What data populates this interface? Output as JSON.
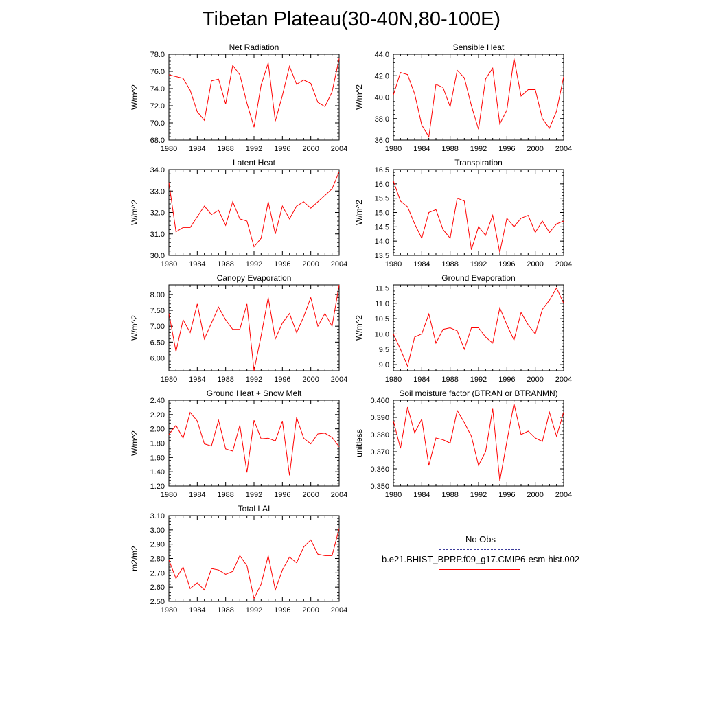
{
  "title": "Tibetan Plateau(30-40N,80-100E)",
  "colors": {
    "series": "#ff0000",
    "obs": "#3b3b9a",
    "axis": "#000000"
  },
  "chart_data": [
    {
      "type": "line",
      "title": "Net Radiation",
      "ylabel": "W/m^2",
      "xlim": [
        1980,
        2004
      ],
      "ylim": [
        68.0,
        78.0
      ],
      "yticks": [
        "68.0",
        "70.0",
        "72.0",
        "74.0",
        "76.0",
        "78.0"
      ],
      "xticks": [
        "1980",
        "1984",
        "1988",
        "1992",
        "1996",
        "2000",
        "2004"
      ],
      "series": [
        {
          "name": "b.e21.BHIST_BPRP.f09_g17.CMIP6-esm-hist.002",
          "x": [
            1980,
            1981,
            1982,
            1983,
            1984,
            1985,
            1986,
            1987,
            1988,
            1989,
            1990,
            1991,
            1992,
            1993,
            1994,
            1995,
            1996,
            1997,
            1998,
            1999,
            2000,
            2001,
            2002,
            2003,
            2004
          ],
          "values": [
            75.6,
            75.4,
            75.2,
            73.8,
            71.3,
            70.3,
            74.9,
            75.1,
            72.2,
            76.7,
            75.6,
            72.3,
            69.5,
            74.4,
            77.0,
            70.2,
            73.2,
            76.6,
            74.5,
            75.0,
            74.6,
            72.4,
            71.9,
            73.6,
            77.5
          ]
        }
      ]
    },
    {
      "type": "line",
      "title": "Sensible Heat",
      "ylabel": "W/m^2",
      "xlim": [
        1980,
        2004
      ],
      "ylim": [
        36.0,
        44.0
      ],
      "yticks": [
        "36.0",
        "38.0",
        "40.0",
        "42.0",
        "44.0"
      ],
      "xticks": [
        "1980",
        "1984",
        "1988",
        "1992",
        "1996",
        "2000",
        "2004"
      ],
      "series": [
        {
          "name": "b.e21.BHIST_BPRP.f09_g17.CMIP6-esm-hist.002",
          "x": [
            1980,
            1981,
            1982,
            1983,
            1984,
            1985,
            1986,
            1987,
            1988,
            1989,
            1990,
            1991,
            1992,
            1993,
            1994,
            1995,
            1996,
            1997,
            1998,
            1999,
            2000,
            2001,
            2002,
            2003,
            2004
          ],
          "values": [
            40.2,
            42.3,
            42.1,
            40.3,
            37.4,
            36.3,
            41.2,
            40.9,
            39.1,
            42.5,
            41.8,
            39.2,
            37.0,
            41.7,
            42.7,
            37.5,
            38.8,
            43.6,
            40.1,
            40.7,
            40.7,
            38.0,
            37.1,
            38.7,
            41.9
          ]
        }
      ]
    },
    {
      "type": "line",
      "title": "Latent Heat",
      "ylabel": "W/m^2",
      "xlim": [
        1980,
        2004
      ],
      "ylim": [
        30.0,
        34.0
      ],
      "yticks": [
        "30.0",
        "31.0",
        "32.0",
        "33.0",
        "34.0"
      ],
      "xticks": [
        "1980",
        "1984",
        "1988",
        "1992",
        "1996",
        "2000",
        "2004"
      ],
      "series": [
        {
          "name": "b.e21.BHIST_BPRP.f09_g17.CMIP6-esm-hist.002",
          "x": [
            1980,
            1981,
            1982,
            1983,
            1984,
            1985,
            1986,
            1987,
            1988,
            1989,
            1990,
            1991,
            1992,
            1993,
            1994,
            1995,
            1996,
            1997,
            1998,
            1999,
            2000,
            2001,
            2002,
            2003,
            2004
          ],
          "values": [
            33.4,
            31.1,
            31.3,
            31.3,
            31.8,
            32.3,
            31.9,
            32.1,
            31.4,
            32.5,
            31.7,
            31.6,
            30.4,
            30.8,
            32.5,
            31.0,
            32.3,
            31.7,
            32.3,
            32.5,
            32.2,
            32.5,
            32.8,
            33.1,
            33.9
          ]
        }
      ]
    },
    {
      "type": "line",
      "title": "Transpiration",
      "ylabel": "W/m^2",
      "xlim": [
        1980,
        2004
      ],
      "ylim": [
        13.5,
        16.5
      ],
      "yticks": [
        "13.5",
        "14.0",
        "14.5",
        "15.0",
        "15.5",
        "16.0",
        "16.5"
      ],
      "xticks": [
        "1980",
        "1984",
        "1988",
        "1992",
        "1996",
        "2000",
        "2004"
      ],
      "series": [
        {
          "name": "b.e21.BHIST_BPRP.f09_g17.CMIP6-esm-hist.002",
          "x": [
            1980,
            1981,
            1982,
            1983,
            1984,
            1985,
            1986,
            1987,
            1988,
            1989,
            1990,
            1991,
            1992,
            1993,
            1994,
            1995,
            1996,
            1997,
            1998,
            1999,
            2000,
            2001,
            2002,
            2003,
            2004
          ],
          "values": [
            16.1,
            15.4,
            15.2,
            14.6,
            14.1,
            15.0,
            15.1,
            14.4,
            14.1,
            15.5,
            15.4,
            13.7,
            14.5,
            14.2,
            14.9,
            13.6,
            14.8,
            14.5,
            14.8,
            14.9,
            14.3,
            14.7,
            14.3,
            14.6,
            14.7
          ]
        }
      ]
    },
    {
      "type": "line",
      "title": "Canopy Evaporation",
      "ylabel": "W/m^2",
      "xlim": [
        1980,
        2004
      ],
      "ylim": [
        5.6,
        8.3
      ],
      "yticks": [
        "6.00",
        "6.50",
        "7.00",
        "7.50",
        "8.00"
      ],
      "xticks": [
        "1980",
        "1984",
        "1988",
        "1992",
        "1996",
        "2000",
        "2004"
      ],
      "series": [
        {
          "name": "b.e21.BHIST_BPRP.f09_g17.CMIP6-esm-hist.002",
          "x": [
            1980,
            1981,
            1982,
            1983,
            1984,
            1985,
            1986,
            1987,
            1988,
            1989,
            1990,
            1991,
            1992,
            1993,
            1994,
            1995,
            1996,
            1997,
            1998,
            1999,
            2000,
            2001,
            2002,
            2003,
            2004
          ],
          "values": [
            7.4,
            6.2,
            7.2,
            6.8,
            7.7,
            6.6,
            7.1,
            7.6,
            7.2,
            6.9,
            6.9,
            7.7,
            5.6,
            6.7,
            7.9,
            6.6,
            7.1,
            7.4,
            6.8,
            7.3,
            7.9,
            7.0,
            7.4,
            7.0,
            8.3
          ]
        }
      ]
    },
    {
      "type": "line",
      "title": "Ground Evaporation",
      "ylabel": "W/m^2",
      "xlim": [
        1980,
        2004
      ],
      "ylim": [
        8.8,
        11.6
      ],
      "yticks": [
        "9.0",
        "9.5",
        "10.0",
        "10.5",
        "11.0",
        "11.5"
      ],
      "xticks": [
        "1980",
        "1984",
        "1988",
        "1992",
        "1996",
        "2000",
        "2004"
      ],
      "series": [
        {
          "name": "b.e21.BHIST_BPRP.f09_g17.CMIP6-esm-hist.002",
          "x": [
            1980,
            1981,
            1982,
            1983,
            1984,
            1985,
            1986,
            1987,
            1988,
            1989,
            1990,
            1991,
            1992,
            1993,
            1994,
            1995,
            1996,
            1997,
            1998,
            1999,
            2000,
            2001,
            2002,
            2003,
            2004
          ],
          "values": [
            10.0,
            9.5,
            8.95,
            9.9,
            10.0,
            10.65,
            9.7,
            10.15,
            10.2,
            10.1,
            9.5,
            10.2,
            10.2,
            9.9,
            9.7,
            10.85,
            10.3,
            9.8,
            10.7,
            10.3,
            10.0,
            10.8,
            11.1,
            11.5,
            11.0
          ]
        }
      ]
    },
    {
      "type": "line",
      "title": "Ground Heat + Snow Melt",
      "ylabel": "W/m^2",
      "xlim": [
        1980,
        2004
      ],
      "ylim": [
        1.2,
        2.4
      ],
      "yticks": [
        "1.20",
        "1.40",
        "1.60",
        "1.80",
        "2.00",
        "2.20",
        "2.40"
      ],
      "xticks": [
        "1980",
        "1984",
        "1988",
        "1992",
        "1996",
        "2000",
        "2004"
      ],
      "series": [
        {
          "name": "b.e21.BHIST_BPRP.f09_g17.CMIP6-esm-hist.002",
          "x": [
            1980,
            1981,
            1982,
            1983,
            1984,
            1985,
            1986,
            1987,
            1988,
            1989,
            1990,
            1991,
            1992,
            1993,
            1994,
            1995,
            1996,
            1997,
            1998,
            1999,
            2000,
            2001,
            2002,
            2003,
            2004
          ],
          "values": [
            1.92,
            2.05,
            1.87,
            2.23,
            2.11,
            1.79,
            1.76,
            2.12,
            1.72,
            1.69,
            2.05,
            1.39,
            2.12,
            1.86,
            1.87,
            1.83,
            2.11,
            1.35,
            2.16,
            1.87,
            1.79,
            1.93,
            1.94,
            1.88,
            1.75
          ]
        }
      ]
    },
    {
      "type": "line",
      "title": "Soil moisture factor (BTRAN or BTRANMN)",
      "ylabel": "unitless",
      "xlim": [
        1980,
        2004
      ],
      "ylim": [
        0.35,
        0.4
      ],
      "yticks": [
        "0.350",
        "0.360",
        "0.370",
        "0.380",
        "0.390",
        "0.400"
      ],
      "xticks": [
        "1980",
        "1984",
        "1988",
        "1992",
        "1996",
        "2000",
        "2004"
      ],
      "series": [
        {
          "name": "b.e21.BHIST_BPRP.f09_g17.CMIP6-esm-hist.002",
          "x": [
            1980,
            1981,
            1982,
            1983,
            1984,
            1985,
            1986,
            1987,
            1988,
            1989,
            1990,
            1991,
            1992,
            1993,
            1994,
            1995,
            1996,
            1997,
            1998,
            1999,
            2000,
            2001,
            2002,
            2003,
            2004
          ],
          "values": [
            0.388,
            0.372,
            0.396,
            0.381,
            0.389,
            0.362,
            0.378,
            0.377,
            0.375,
            0.394,
            0.387,
            0.379,
            0.362,
            0.37,
            0.395,
            0.353,
            0.376,
            0.398,
            0.38,
            0.382,
            0.378,
            0.376,
            0.393,
            0.379,
            0.393
          ]
        }
      ]
    },
    {
      "type": "line",
      "title": "Total LAI",
      "ylabel": "m2/m2",
      "xlim": [
        1980,
        2004
      ],
      "ylim": [
        2.5,
        3.1
      ],
      "yticks": [
        "2.50",
        "2.60",
        "2.70",
        "2.80",
        "2.90",
        "3.00",
        "3.10"
      ],
      "xticks": [
        "1980",
        "1984",
        "1988",
        "1992",
        "1996",
        "2000",
        "2004"
      ],
      "series": [
        {
          "name": "b.e21.BHIST_BPRP.f09_g17.CMIP6-esm-hist.002",
          "x": [
            1980,
            1981,
            1982,
            1983,
            1984,
            1985,
            1986,
            1987,
            1988,
            1989,
            1990,
            1991,
            1992,
            1993,
            1994,
            1995,
            1996,
            1997,
            1998,
            1999,
            2000,
            2001,
            2002,
            2003,
            2004
          ],
          "values": [
            2.79,
            2.66,
            2.74,
            2.59,
            2.63,
            2.58,
            2.73,
            2.72,
            2.69,
            2.71,
            2.82,
            2.75,
            2.52,
            2.62,
            2.82,
            2.58,
            2.72,
            2.81,
            2.77,
            2.88,
            2.93,
            2.83,
            2.82,
            2.82,
            3.01
          ]
        }
      ]
    }
  ],
  "legend": {
    "obs_label": "No Obs",
    "model_label": "b.e21.BHIST_BPRP.f09_g17.CMIP6-esm-hist.002"
  }
}
